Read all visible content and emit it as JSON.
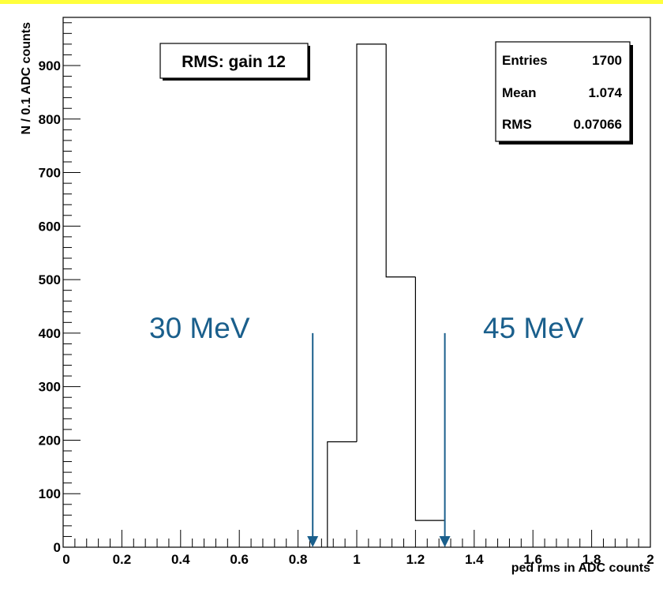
{
  "chart_data": {
    "type": "bar",
    "title": "RMS: gain 12",
    "xlabel": "ped rms in ADC counts",
    "ylabel": "N / 0.1 ADC counts",
    "xlim": [
      0,
      2
    ],
    "ylim": [
      0,
      990
    ],
    "x_ticks": [
      "0",
      "0.2",
      "0.4",
      "0.6",
      "0.8",
      "1",
      "1.2",
      "1.4",
      "1.6",
      "1.8",
      "2"
    ],
    "y_ticks": [
      "0",
      "100",
      "200",
      "300",
      "400",
      "500",
      "600",
      "700",
      "800",
      "900"
    ],
    "bin_edges": [
      0.9,
      1.0,
      1.1,
      1.2,
      1.3
    ],
    "values": [
      197,
      940,
      505,
      50
    ],
    "stats": [
      {
        "label": "Entries",
        "value": "1700"
      },
      {
        "label": "Mean",
        "value": "1.074"
      },
      {
        "label": "RMS",
        "value": "0.07066"
      }
    ],
    "annotations": [
      {
        "text": "30 MeV",
        "x": 0.85,
        "y_from": 400,
        "y_to": 0
      },
      {
        "text": "45 MeV",
        "x": 1.3,
        "y_from": 400,
        "y_to": 0
      }
    ],
    "annotation_color": "#1a5f8c",
    "grid": false,
    "legend": "top-right"
  }
}
